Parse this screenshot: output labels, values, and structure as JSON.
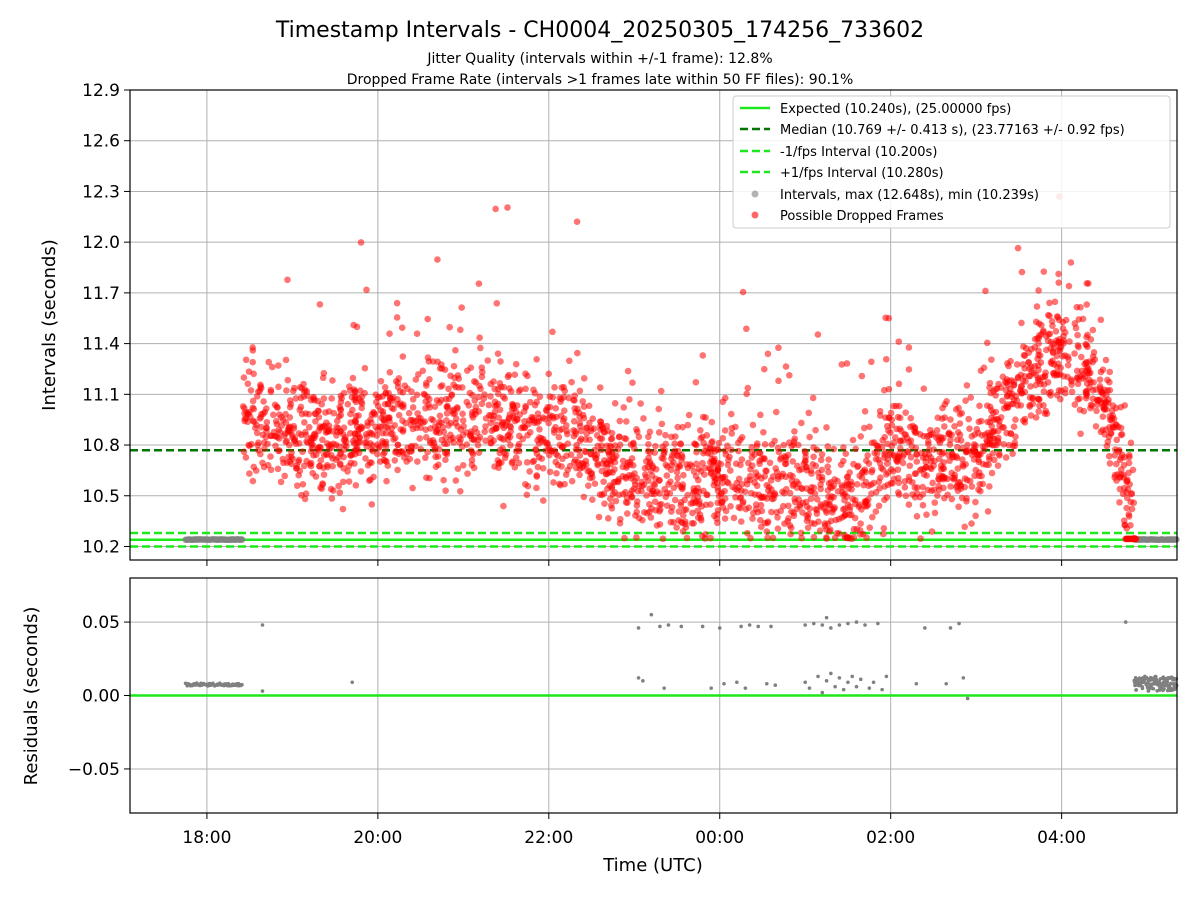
{
  "chart_data": [
    {
      "type": "scatter",
      "title": "Timestamp Intervals - CH0004_20250305_174256_733602",
      "subtitle_lines": [
        "Jitter Quality (intervals within +/-1 frame): 12.8%",
        "Dropped Frame Rate (intervals >1 frames late within 50 FF files): 90.1%"
      ],
      "xlabel": "",
      "ylabel": "Intervals (seconds)",
      "x_range_hours_utc": [
        17.1,
        29.35
      ],
      "ylim": [
        10.12,
        12.9
      ],
      "x_tick_labels": [
        "18:00",
        "20:00",
        "22:00",
        "00:00",
        "02:00",
        "04:00"
      ],
      "x_tick_hours": [
        18,
        20,
        22,
        24,
        26,
        28
      ],
      "y_ticks": [
        10.2,
        10.5,
        10.8,
        11.1,
        11.4,
        11.7,
        12.0,
        12.3,
        12.6,
        12.9
      ],
      "y_tick_labels": [
        "10.2",
        "10.5",
        "10.8",
        "11.1",
        "11.4",
        "11.7",
        "12.0",
        "12.3",
        "12.6",
        "12.9"
      ],
      "grid": true,
      "legend_position": "top-right",
      "reference_lines": [
        {
          "name": "Expected (10.240s), (25.00000 fps)",
          "y": 10.24,
          "style": "solid",
          "color": "#1de81d"
        },
        {
          "name": "Median (10.769 +/- 0.413 s), (23.77163 +/- 0.92 fps)",
          "y": 10.769,
          "style": "dashed",
          "color": "#007500"
        },
        {
          "name": "-1/fps Interval (10.200s)",
          "y": 10.2,
          "style": "dashed",
          "color": "#1de81d"
        },
        {
          "name": "+1/fps Interval (10.280s)",
          "y": 10.28,
          "style": "dashed",
          "color": "#1de81d"
        }
      ],
      "series": [
        {
          "name": "Intervals, max (12.648s), min (10.239s)",
          "color": "#808080",
          "kind": "all-intervals"
        },
        {
          "name": "Possible Dropped Frames",
          "color": "#ff0000",
          "kind": "dropped"
        }
      ],
      "series_envelope": {
        "description_hours": "normal-interval bands at ~10.24s: 17.75-18.42 and 28.85-29.35 (UTC hours); dropped-frame cloud 18.42-28.85",
        "normal_band_1": [
          17.75,
          18.42
        ],
        "normal_band_2": [
          28.85,
          29.35
        ],
        "dropped_range": [
          18.42,
          28.85
        ],
        "median_profile": [
          [
            18.42,
            10.95
          ],
          [
            19.0,
            10.85
          ],
          [
            20.0,
            10.9
          ],
          [
            21.0,
            10.95
          ],
          [
            22.0,
            10.9
          ],
          [
            23.0,
            10.6
          ],
          [
            24.0,
            10.6
          ],
          [
            25.0,
            10.55
          ],
          [
            25.5,
            10.45
          ],
          [
            26.0,
            10.8
          ],
          [
            26.5,
            10.65
          ],
          [
            27.0,
            10.75
          ],
          [
            27.5,
            11.1
          ],
          [
            28.0,
            11.4
          ],
          [
            28.5,
            11.1
          ],
          [
            28.85,
            10.4
          ]
        ]
      }
    },
    {
      "type": "scatter",
      "title": "",
      "xlabel": "Time (UTC)",
      "ylabel": "Residuals (seconds)",
      "x_range_hours_utc": [
        17.1,
        29.35
      ],
      "ylim": [
        -0.08,
        0.08
      ],
      "y_ticks": [
        0.05,
        0.0,
        -0.05
      ],
      "y_tick_labels": [
        "0.05",
        "0.00",
        "−0.05"
      ],
      "x_tick_labels": [
        "18:00",
        "20:00",
        "22:00",
        "00:00",
        "02:00",
        "04:00"
      ],
      "x_tick_hours": [
        18,
        20,
        22,
        24,
        26,
        28
      ],
      "grid": true,
      "zero_line_color": "#1de81d",
      "series": [
        {
          "name": "",
          "color": "#808080",
          "points": [
            [
              18.65,
              0.048
            ],
            [
              19.7,
              0.009
            ],
            [
              18.65,
              0.003
            ],
            [
              23.05,
              0.046
            ],
            [
              23.2,
              0.055
            ],
            [
              23.3,
              0.047
            ],
            [
              23.4,
              0.048
            ],
            [
              23.55,
              0.047
            ],
            [
              23.8,
              0.047
            ],
            [
              24.0,
              0.046
            ],
            [
              24.25,
              0.047
            ],
            [
              24.35,
              0.048
            ],
            [
              24.45,
              0.047
            ],
            [
              24.6,
              0.047
            ],
            [
              23.05,
              0.012
            ],
            [
              23.1,
              0.01
            ],
            [
              23.35,
              0.005
            ],
            [
              23.9,
              0.005
            ],
            [
              24.05,
              0.008
            ],
            [
              24.2,
              0.009
            ],
            [
              24.3,
              0.005
            ],
            [
              24.55,
              0.008
            ],
            [
              24.65,
              0.007
            ],
            [
              25.0,
              0.048
            ],
            [
              25.1,
              0.049
            ],
            [
              25.2,
              0.048
            ],
            [
              25.25,
              0.053
            ],
            [
              25.3,
              0.046
            ],
            [
              25.4,
              0.048
            ],
            [
              25.5,
              0.049
            ],
            [
              25.6,
              0.05
            ],
            [
              25.7,
              0.048
            ],
            [
              25.85,
              0.049
            ],
            [
              25.0,
              0.009
            ],
            [
              25.05,
              0.005
            ],
            [
              25.15,
              0.013
            ],
            [
              25.2,
              0.002
            ],
            [
              25.25,
              0.01
            ],
            [
              25.3,
              0.015
            ],
            [
              25.35,
              0.006
            ],
            [
              25.4,
              0.012
            ],
            [
              25.45,
              0.004
            ],
            [
              25.5,
              0.009
            ],
            [
              25.55,
              0.013
            ],
            [
              25.6,
              0.006
            ],
            [
              25.65,
              0.011
            ],
            [
              25.75,
              0.005
            ],
            [
              25.8,
              0.009
            ],
            [
              25.9,
              0.004
            ],
            [
              25.95,
              0.013
            ],
            [
              26.3,
              0.008
            ],
            [
              26.4,
              0.046
            ],
            [
              26.7,
              0.046
            ],
            [
              26.8,
              0.049
            ],
            [
              26.65,
              0.008
            ],
            [
              26.85,
              0.012
            ],
            [
              26.9,
              -0.002
            ],
            [
              28.75,
              0.05
            ]
          ]
        }
      ],
      "series_envelope": {
        "normal_band_1": [
          17.75,
          18.42
        ],
        "normal_band_1_level": 0.0075,
        "normal_band_2": [
          28.85,
          29.35
        ],
        "normal_band_2_level": 0.008
      }
    }
  ]
}
